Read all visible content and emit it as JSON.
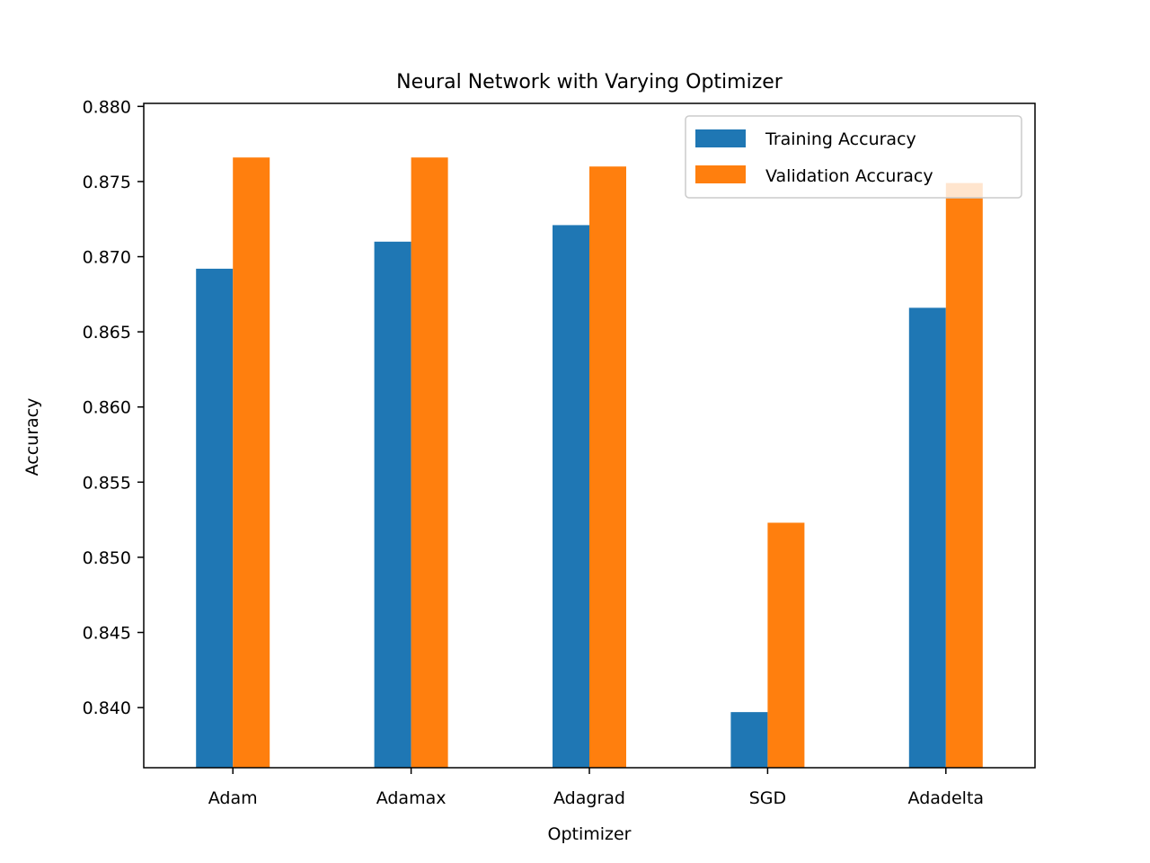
{
  "chart_data": {
    "type": "bar",
    "title": "Neural Network with Varying Optimizer",
    "xlabel": "Optimizer",
    "ylabel": "Accuracy",
    "categories": [
      "Adam",
      "Adamax",
      "Adagrad",
      "SGD",
      "Adadelta"
    ],
    "series": [
      {
        "name": "Training Accuracy",
        "color": "#1f77b4",
        "values": [
          0.8692,
          0.871,
          0.8721,
          0.8397,
          0.8666
        ]
      },
      {
        "name": "Validation Accuracy",
        "color": "#ff7f0e",
        "values": [
          0.8766,
          0.8766,
          0.876,
          0.8523,
          0.8749
        ]
      }
    ],
    "ylim": [
      0.836,
      0.8802
    ],
    "yticks": [
      "0.840",
      "0.845",
      "0.850",
      "0.855",
      "0.860",
      "0.865",
      "0.870",
      "0.875",
      "0.880"
    ],
    "grid": false,
    "legend_position": "top-right"
  }
}
